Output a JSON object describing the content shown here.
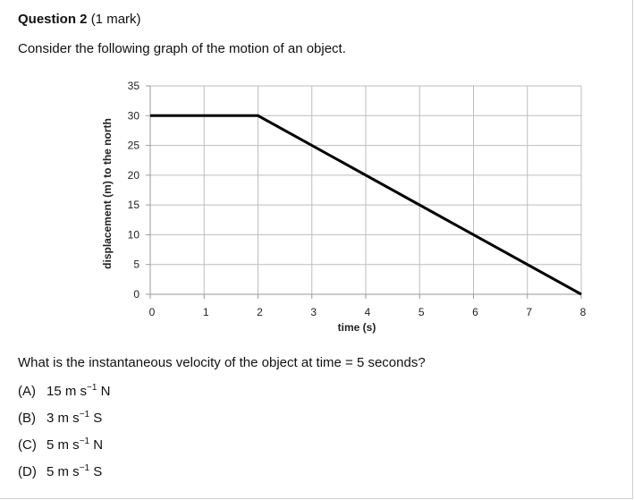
{
  "question": {
    "number": "Question 2",
    "marks": "(1 mark)",
    "intro": "Consider the following graph of the motion of an object.",
    "prompt": "What is the instantaneous velocity of the object at time = 5 seconds?"
  },
  "options": [
    {
      "letter": "(A)",
      "value": "15",
      "unit_base": "m s",
      "exponent": "−1",
      "direction": "N"
    },
    {
      "letter": "(B)",
      "value": "3",
      "unit_base": "m s",
      "exponent": "−1",
      "direction": "S"
    },
    {
      "letter": "(C)",
      "value": "5",
      "unit_base": "m s",
      "exponent": "−1",
      "direction": "N"
    },
    {
      "letter": "(D)",
      "value": "5",
      "unit_base": "m s",
      "exponent": "−1",
      "direction": "S"
    }
  ],
  "chart_data": {
    "type": "line",
    "xlabel": "time (s)",
    "ylabel": "displacement (m) to the north",
    "xlim": [
      0,
      8
    ],
    "ylim": [
      0,
      35
    ],
    "x_ticks": [
      0,
      1,
      2,
      3,
      4,
      5,
      6,
      7,
      8
    ],
    "y_ticks": [
      0,
      5,
      10,
      15,
      20,
      25,
      30,
      35
    ],
    "grid": true,
    "series": [
      {
        "x": [
          0,
          2,
          8
        ],
        "y": [
          30,
          30,
          0
        ]
      }
    ],
    "colors": {
      "line": "#000000",
      "grid": "#bdbdbd",
      "axis": "#9a9a9a"
    }
  }
}
